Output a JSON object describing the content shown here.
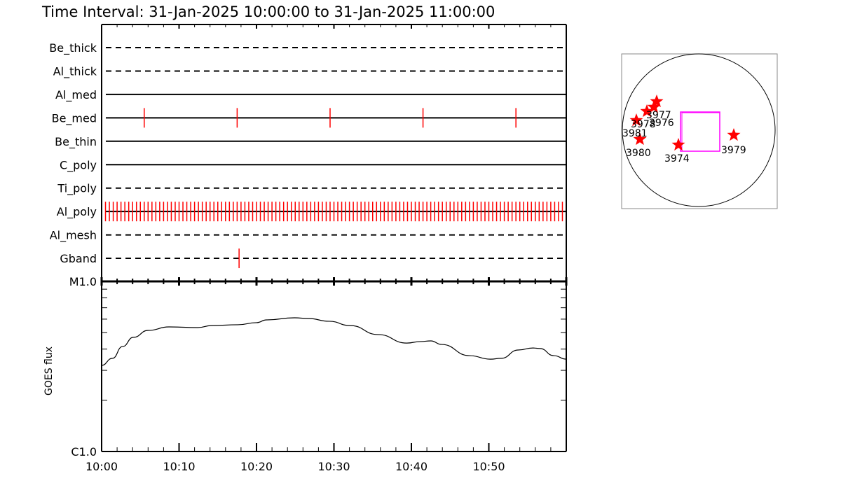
{
  "title": "Time Interval: 31-Jan-2025 10:00:00 to 31-Jan-2025 11:00:00",
  "chart_data": [
    {
      "type": "timeline",
      "x_range": [
        "10:00:00",
        "11:00:00"
      ],
      "x_tick_labels": [
        "10:00",
        "10:10",
        "10:20",
        "10:30",
        "10:40",
        "10:50"
      ],
      "rows": [
        {
          "name": "Be_thick",
          "line": "dashed",
          "obs": []
        },
        {
          "name": "Al_thick",
          "line": "dashed",
          "obs": []
        },
        {
          "name": "Al_med",
          "line": "solid",
          "obs": []
        },
        {
          "name": "Be_med",
          "line": "solid",
          "obs": [
            "10:05:30",
            "10:17:30",
            "10:29:30",
            "10:41:30",
            "10:53:30"
          ]
        },
        {
          "name": "Be_thin",
          "line": "solid",
          "obs": []
        },
        {
          "name": "C_poly",
          "line": "solid",
          "obs": []
        },
        {
          "name": "Ti_poly",
          "line": "dashed",
          "obs": []
        },
        {
          "name": "Al_poly",
          "line": "solid",
          "obs_every": {
            "start": "10:00:30",
            "end": "10:59:30",
            "interval_s": 30
          }
        },
        {
          "name": "Al_mesh",
          "line": "dashed",
          "obs": []
        },
        {
          "name": "Gband",
          "line": "dashed",
          "obs": [
            "10:17:45"
          ]
        }
      ],
      "obs_color": "#ff0000"
    },
    {
      "type": "line",
      "ylabel": "GOES flux",
      "y_scale": "log",
      "ylim": [
        1e-06,
        1e-05
      ],
      "y_tick_labels": [
        "C1.0",
        "M1.0"
      ],
      "x_range": [
        "10:00:00",
        "11:00:00"
      ],
      "x_tick_labels": [
        "10:00",
        "10:10",
        "10:20",
        "10:30",
        "10:40",
        "10:50"
      ],
      "x": [
        "10:00:00",
        "10:01:24",
        "10:02:42",
        "10:04:06",
        "10:06:00",
        "10:08:42",
        "10:12:24",
        "10:14:12",
        "10:17:36",
        "10:20:00",
        "10:21:18",
        "10:24:54",
        "10:26:42",
        "10:29:24",
        "10:32:06",
        "10:35:42",
        "10:39:24",
        "10:41:12",
        "10:42:30",
        "10:43:54",
        "10:47:30",
        "10:50:12",
        "10:51:36",
        "10:53:48",
        "10:55:42",
        "10:56:36",
        "10:58:24",
        "11:00:00"
      ],
      "y": [
        3.21e-06,
        3.53e-06,
        4.14e-06,
        4.69e-06,
        5.15e-06,
        5.4e-06,
        5.35e-06,
        5.5e-06,
        5.56e-06,
        5.72e-06,
        5.94e-06,
        6.11e-06,
        6.05e-06,
        5.83e-06,
        5.5e-06,
        4.87e-06,
        4.34e-06,
        4.43e-06,
        4.47e-06,
        4.26e-06,
        3.66e-06,
        3.49e-06,
        3.53e-06,
        3.95e-06,
        4.06e-06,
        4.03e-06,
        3.66e-06,
        3.49e-06
      ]
    }
  ],
  "sun_map": {
    "regions": [
      "3977",
      "3976",
      "3978",
      "3981",
      "3980",
      "3974",
      "3979"
    ],
    "frame_color": "#ff00ff",
    "marker_color": "#ff0000"
  }
}
